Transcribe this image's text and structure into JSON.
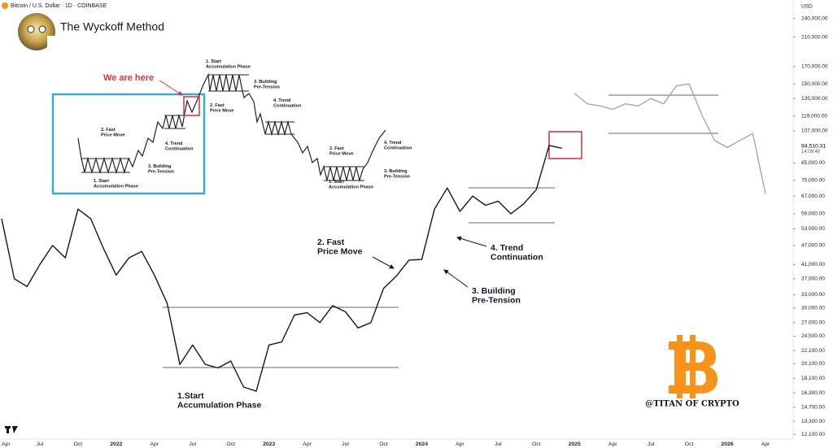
{
  "chart_data": {
    "type": "line",
    "title": "The Wyckoff Method",
    "subtitle": "Bitcoin / U.S. Dollar · 1D · COINBASE",
    "currency": "USD",
    "last_price": {
      "value": 94510.31,
      "label": "94,510.31"
    },
    "countdown": "14:09:40",
    "watermark": "@TITAN OF CRYPTO",
    "log_scale": true,
    "categories": [
      "Apr",
      null,
      null,
      "Jul",
      null,
      null,
      "Oct",
      null,
      null,
      "2022",
      null,
      null,
      "Apr",
      null,
      null,
      "Jul",
      null,
      null,
      "Oct",
      null,
      null,
      "2023",
      null,
      null,
      "Apr",
      null,
      null,
      "Jul",
      null,
      null,
      "Oct",
      null,
      null,
      "2024",
      null,
      null,
      "Apr",
      null,
      null,
      "Jul",
      null,
      null,
      "Oct",
      null,
      null,
      "2025",
      null,
      null,
      "Apr",
      null,
      null,
      "Jul",
      null,
      null,
      "Oct",
      null,
      null,
      "2026",
      null,
      null,
      "Apr"
    ],
    "series": [
      {
        "color": "#131722",
        "values": [
          57000,
          37000,
          35000,
          41000,
          47000,
          43000,
          61000,
          57000,
          46000,
          38000,
          43000,
          45000,
          38000,
          31000,
          20000,
          23000,
          20000,
          19500,
          20500,
          17000,
          16500,
          23000,
          23500,
          28500,
          29000,
          27000,
          30500,
          29200,
          26000,
          27000,
          34500,
          37700,
          42300,
          42500,
          61000,
          71000,
          60000,
          67000,
          62700,
          64600,
          59000,
          63300,
          70200,
          96400,
          94500,
          null,
          null,
          null,
          null,
          null,
          null,
          null,
          null,
          null,
          null,
          null,
          null,
          null,
          null,
          null,
          null
        ]
      },
      {
        "color": "#a8a8a8",
        "values": [
          null,
          null,
          null,
          null,
          null,
          null,
          null,
          null,
          null,
          null,
          null,
          null,
          null,
          null,
          null,
          null,
          null,
          null,
          null,
          null,
          null,
          null,
          null,
          null,
          null,
          null,
          null,
          null,
          null,
          null,
          null,
          null,
          null,
          null,
          null,
          null,
          null,
          null,
          null,
          null,
          null,
          null,
          null,
          null,
          null,
          140000,
          130000,
          128000,
          125000,
          130000,
          128000,
          135000,
          130000,
          148000,
          150000,
          120000,
          100000,
          95000,
          100000,
          105000,
          68000
        ]
      }
    ],
    "ylim": [
      11700,
      274000
    ],
    "yticks": [
      {
        "value": 240000,
        "label": "240,000.00"
      },
      {
        "value": 210000,
        "label": "210,000.00"
      },
      {
        "value": 170000,
        "label": "170,000.00"
      },
      {
        "value": 150000,
        "label": "150,000.00"
      },
      {
        "value": 135000,
        "label": "135,000.00"
      },
      {
        "value": 119000,
        "label": "119,000.00"
      },
      {
        "value": 107000,
        "label": "107,000.00"
      },
      {
        "value": 85000,
        "label": "85,000.00"
      },
      {
        "value": 75000,
        "label": "75,000.00"
      },
      {
        "value": 67000,
        "label": "67,000.00"
      },
      {
        "value": 59000,
        "label": "59,000.00"
      },
      {
        "value": 53000,
        "label": "53,000.00"
      },
      {
        "value": 47000,
        "label": "47,000.00"
      },
      {
        "value": 41000,
        "label": "41,000.00"
      },
      {
        "value": 37000,
        "label": "37,000.00"
      },
      {
        "value": 33000,
        "label": "33,000.00"
      },
      {
        "value": 30000,
        "label": "30,000.00"
      },
      {
        "value": 27000,
        "label": "27,000.00"
      },
      {
        "value": 24500,
        "label": "24,500.00"
      },
      {
        "value": 22100,
        "label": "22,100.00"
      },
      {
        "value": 20100,
        "label": "20,100.00"
      },
      {
        "value": 18100,
        "label": "18,100.00"
      },
      {
        "value": 16300,
        "label": "16,300.00"
      },
      {
        "value": 14700,
        "label": "14,700.00"
      },
      {
        "value": 13300,
        "label": "13,300.00"
      },
      {
        "value": 12100,
        "label": "12,100.00"
      }
    ],
    "annotations": [
      {
        "lines": [
          "1.Start",
          "Accumulation Phase"
        ]
      },
      {
        "lines": [
          "2. Fast",
          "Price Move"
        ]
      },
      {
        "lines": [
          "3. Building",
          "Pre-Tension"
        ]
      },
      {
        "lines": [
          "4. Trend",
          "Continuation"
        ]
      }
    ],
    "inset_annotations": [
      {
        "lines": [
          "We are here"
        ]
      },
      {
        "lines": [
          "2. Fast",
          "Price Move"
        ]
      },
      {
        "lines": [
          "4. Trend",
          "Continuation"
        ]
      },
      {
        "lines": [
          "3. Building",
          "Pre-Tension"
        ]
      },
      {
        "lines": [
          "1. Start",
          "Accumulation Phase"
        ]
      },
      {
        "lines": [
          "1. Start",
          "Accumulation Phase"
        ]
      },
      {
        "lines": [
          "3. Building",
          "Pre-Tension"
        ]
      },
      {
        "lines": [
          "4. Trend",
          "Continuation"
        ]
      },
      {
        "lines": [
          "2. Fast",
          "Price Move"
        ]
      },
      {
        "lines": [
          "2. Fast",
          "Price Move"
        ]
      },
      {
        "lines": [
          "4. Trend",
          "Continuation"
        ]
      },
      {
        "lines": [
          "3. Building",
          "Pre-Tension"
        ]
      },
      {
        "lines": [
          "1. Start",
          "Accumulation Phase"
        ]
      }
    ]
  }
}
